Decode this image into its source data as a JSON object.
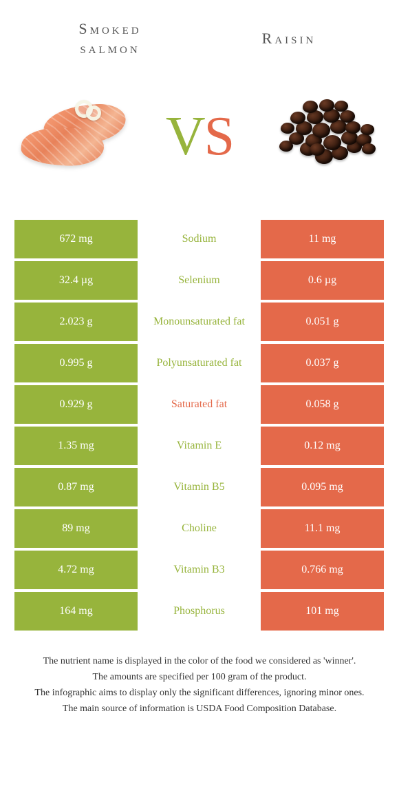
{
  "colors": {
    "left_food": "#97b43c",
    "right_food": "#e4694a",
    "row_gap": "#ffffff",
    "text_white": "#ffffff",
    "vs_v": "#97b43c",
    "vs_s": "#e4694a"
  },
  "left_food": {
    "title": "Smoked\nsalmon"
  },
  "right_food": {
    "title": "Raisin"
  },
  "vs": {
    "v": "V",
    "s": "S"
  },
  "rows": [
    {
      "left": "672 mg",
      "label": "Sodium",
      "right": "11 mg",
      "winner": "left"
    },
    {
      "left": "32.4 µg",
      "label": "Selenium",
      "right": "0.6 µg",
      "winner": "left"
    },
    {
      "left": "2.023 g",
      "label": "Monounsaturated fat",
      "right": "0.051 g",
      "winner": "left"
    },
    {
      "left": "0.995 g",
      "label": "Polyunsaturated fat",
      "right": "0.037 g",
      "winner": "left"
    },
    {
      "left": "0.929 g",
      "label": "Saturated fat",
      "right": "0.058 g",
      "winner": "right"
    },
    {
      "left": "1.35 mg",
      "label": "Vitamin E",
      "right": "0.12 mg",
      "winner": "left"
    },
    {
      "left": "0.87 mg",
      "label": "Vitamin B5",
      "right": "0.095 mg",
      "winner": "left"
    },
    {
      "left": "89 mg",
      "label": "Choline",
      "right": "11.1 mg",
      "winner": "left"
    },
    {
      "left": "4.72 mg",
      "label": "Vitamin B3",
      "right": "0.766 mg",
      "winner": "left"
    },
    {
      "left": "164 mg",
      "label": "Phosphorus",
      "right": "101 mg",
      "winner": "left"
    }
  ],
  "footer": {
    "line1": "The nutrient name is displayed in the color of the food we considered as 'winner'.",
    "line2": "The amounts are specified per 100 gram of the product.",
    "line3": "The infographic aims to display only the significant differences, ignoring minor ones.",
    "line4": "The main source of information is USDA Food Composition Database."
  },
  "raisin_positions": [
    [
      46,
      68,
      24,
      20
    ],
    [
      68,
      78,
      26,
      22
    ],
    [
      92,
      74,
      24,
      20
    ],
    [
      114,
      66,
      22,
      18
    ],
    [
      30,
      54,
      22,
      18
    ],
    [
      54,
      56,
      24,
      20
    ],
    [
      80,
      58,
      26,
      22
    ],
    [
      106,
      52,
      24,
      20
    ],
    [
      128,
      56,
      22,
      18
    ],
    [
      18,
      40,
      20,
      16
    ],
    [
      40,
      38,
      24,
      20
    ],
    [
      64,
      40,
      26,
      22
    ],
    [
      90,
      36,
      24,
      20
    ],
    [
      112,
      38,
      22,
      18
    ],
    [
      134,
      42,
      20,
      16
    ],
    [
      32,
      24,
      22,
      18
    ],
    [
      56,
      22,
      24,
      20
    ],
    [
      80,
      20,
      24,
      20
    ],
    [
      104,
      22,
      22,
      18
    ],
    [
      50,
      8,
      22,
      18
    ],
    [
      74,
      6,
      22,
      18
    ],
    [
      96,
      8,
      20,
      16
    ],
    [
      16,
      66,
      20,
      16
    ],
    [
      136,
      70,
      20,
      16
    ],
    [
      60,
      70,
      22,
      18
    ]
  ]
}
